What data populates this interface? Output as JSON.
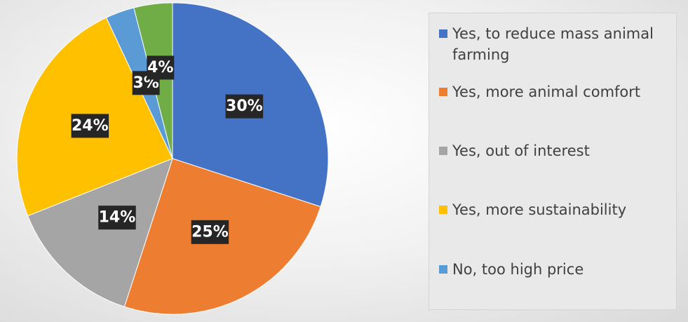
{
  "chart_data": {
    "type": "pie",
    "start_angle_deg": 0,
    "direction": "clockwise",
    "title": "",
    "slices": [
      {
        "label": "Yes, to reduce mass animal farming",
        "value": 30,
        "display": "30%",
        "color": "#4472C4"
      },
      {
        "label": "Yes, more animal comfort",
        "value": 25,
        "display": "25%",
        "color": "#ED7D31"
      },
      {
        "label": "Yes, out of interest",
        "value": 14,
        "display": "14%",
        "color": "#A5A5A5"
      },
      {
        "label": "Yes, more sustainability",
        "value": 24,
        "display": "24%",
        "color": "#FFC000"
      },
      {
        "label": "No, too high price",
        "value": 3,
        "display": "3%",
        "color": "#5B9BD5"
      },
      {
        "label": "",
        "value": 4,
        "display": "4%",
        "color": "#70AD47"
      }
    ],
    "data_label_style": {
      "background": "#262626",
      "text_color": "#FFFFFF"
    },
    "legend": {
      "position": "right",
      "entries": [
        {
          "text": "Yes, to reduce mass animal farming",
          "color": "#4472C4"
        },
        {
          "text": "Yes, more animal comfort",
          "color": "#ED7D31"
        },
        {
          "text": "Yes, out of interest",
          "color": "#A5A5A5"
        },
        {
          "text": "Yes, more sustainability",
          "color": "#FFC000"
        },
        {
          "text": "No, too high price",
          "color": "#5B9BD5"
        }
      ]
    }
  }
}
